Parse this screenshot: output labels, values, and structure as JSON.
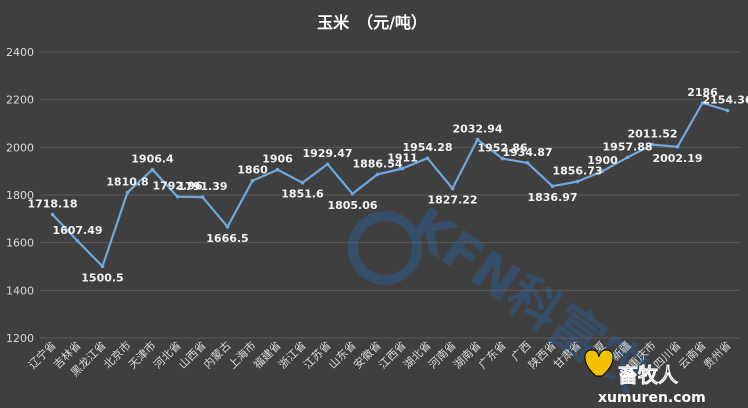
{
  "chart_data": {
    "type": "line",
    "title": "玉米　（元/吨）",
    "xlabel": "",
    "ylabel": "",
    "ylim": [
      1200,
      2400
    ],
    "yticks": [
      1200,
      1400,
      1600,
      1800,
      2000,
      2200,
      2400
    ],
    "grid": "horizontal",
    "categories": [
      "辽宁省",
      "吉林省",
      "黑龙江省",
      "北京市",
      "天津市",
      "河北省",
      "山西省",
      "内蒙古",
      "上海市",
      "福建省",
      "浙江省",
      "江苏省",
      "山东省",
      "安徽省",
      "江西省",
      "湖北省",
      "河南省",
      "湖南省",
      "广东省",
      "广西",
      "陕西省",
      "甘肃省",
      "宁夏",
      "新疆",
      "重庆市",
      "四川省",
      "云南省",
      "贵州省"
    ],
    "series": [
      {
        "values": [
          1718.18,
          1607.49,
          1500.5,
          1810.8,
          1906.4,
          1792.96,
          1791.39,
          1666.5,
          1860,
          1906,
          1851.6,
          1929.47,
          1805.06,
          1886.54,
          1911,
          1954.28,
          1827.22,
          2032.94,
          1952.86,
          1934.87,
          1836.97,
          1856.73,
          1900,
          1957.88,
          2011.52,
          2002.19,
          2186,
          2154.36
        ],
        "labels": [
          "1718.18",
          "1607.49",
          "1500.5",
          "1810.8",
          "1906.4",
          "1792.96",
          "1791.39",
          "1666.5",
          "1860",
          "1906",
          "1851.6",
          "1929.47",
          "1805.06",
          "1886.54",
          "1911",
          "1954.28",
          "1827.22",
          "2032.94",
          "1952.86",
          "1934.87",
          "1836.97",
          "1856.73",
          "1900",
          "1957.88",
          "2011.52",
          "2002.19",
          "2186",
          "2154.36"
        ],
        "color": "#6fa8dc"
      }
    ]
  },
  "watermark": {
    "brand_text": "KFN科富农",
    "corner_logo_text": "畜牧人",
    "corner_url": "xumuren.com"
  },
  "colors": {
    "background": "#3f3f3f",
    "grid": "#5a5a5a",
    "text": "#d9d9d9",
    "label": "#f2f2f2",
    "watermark": "#2e5c8a",
    "logo_yellow": "#f2c200"
  }
}
